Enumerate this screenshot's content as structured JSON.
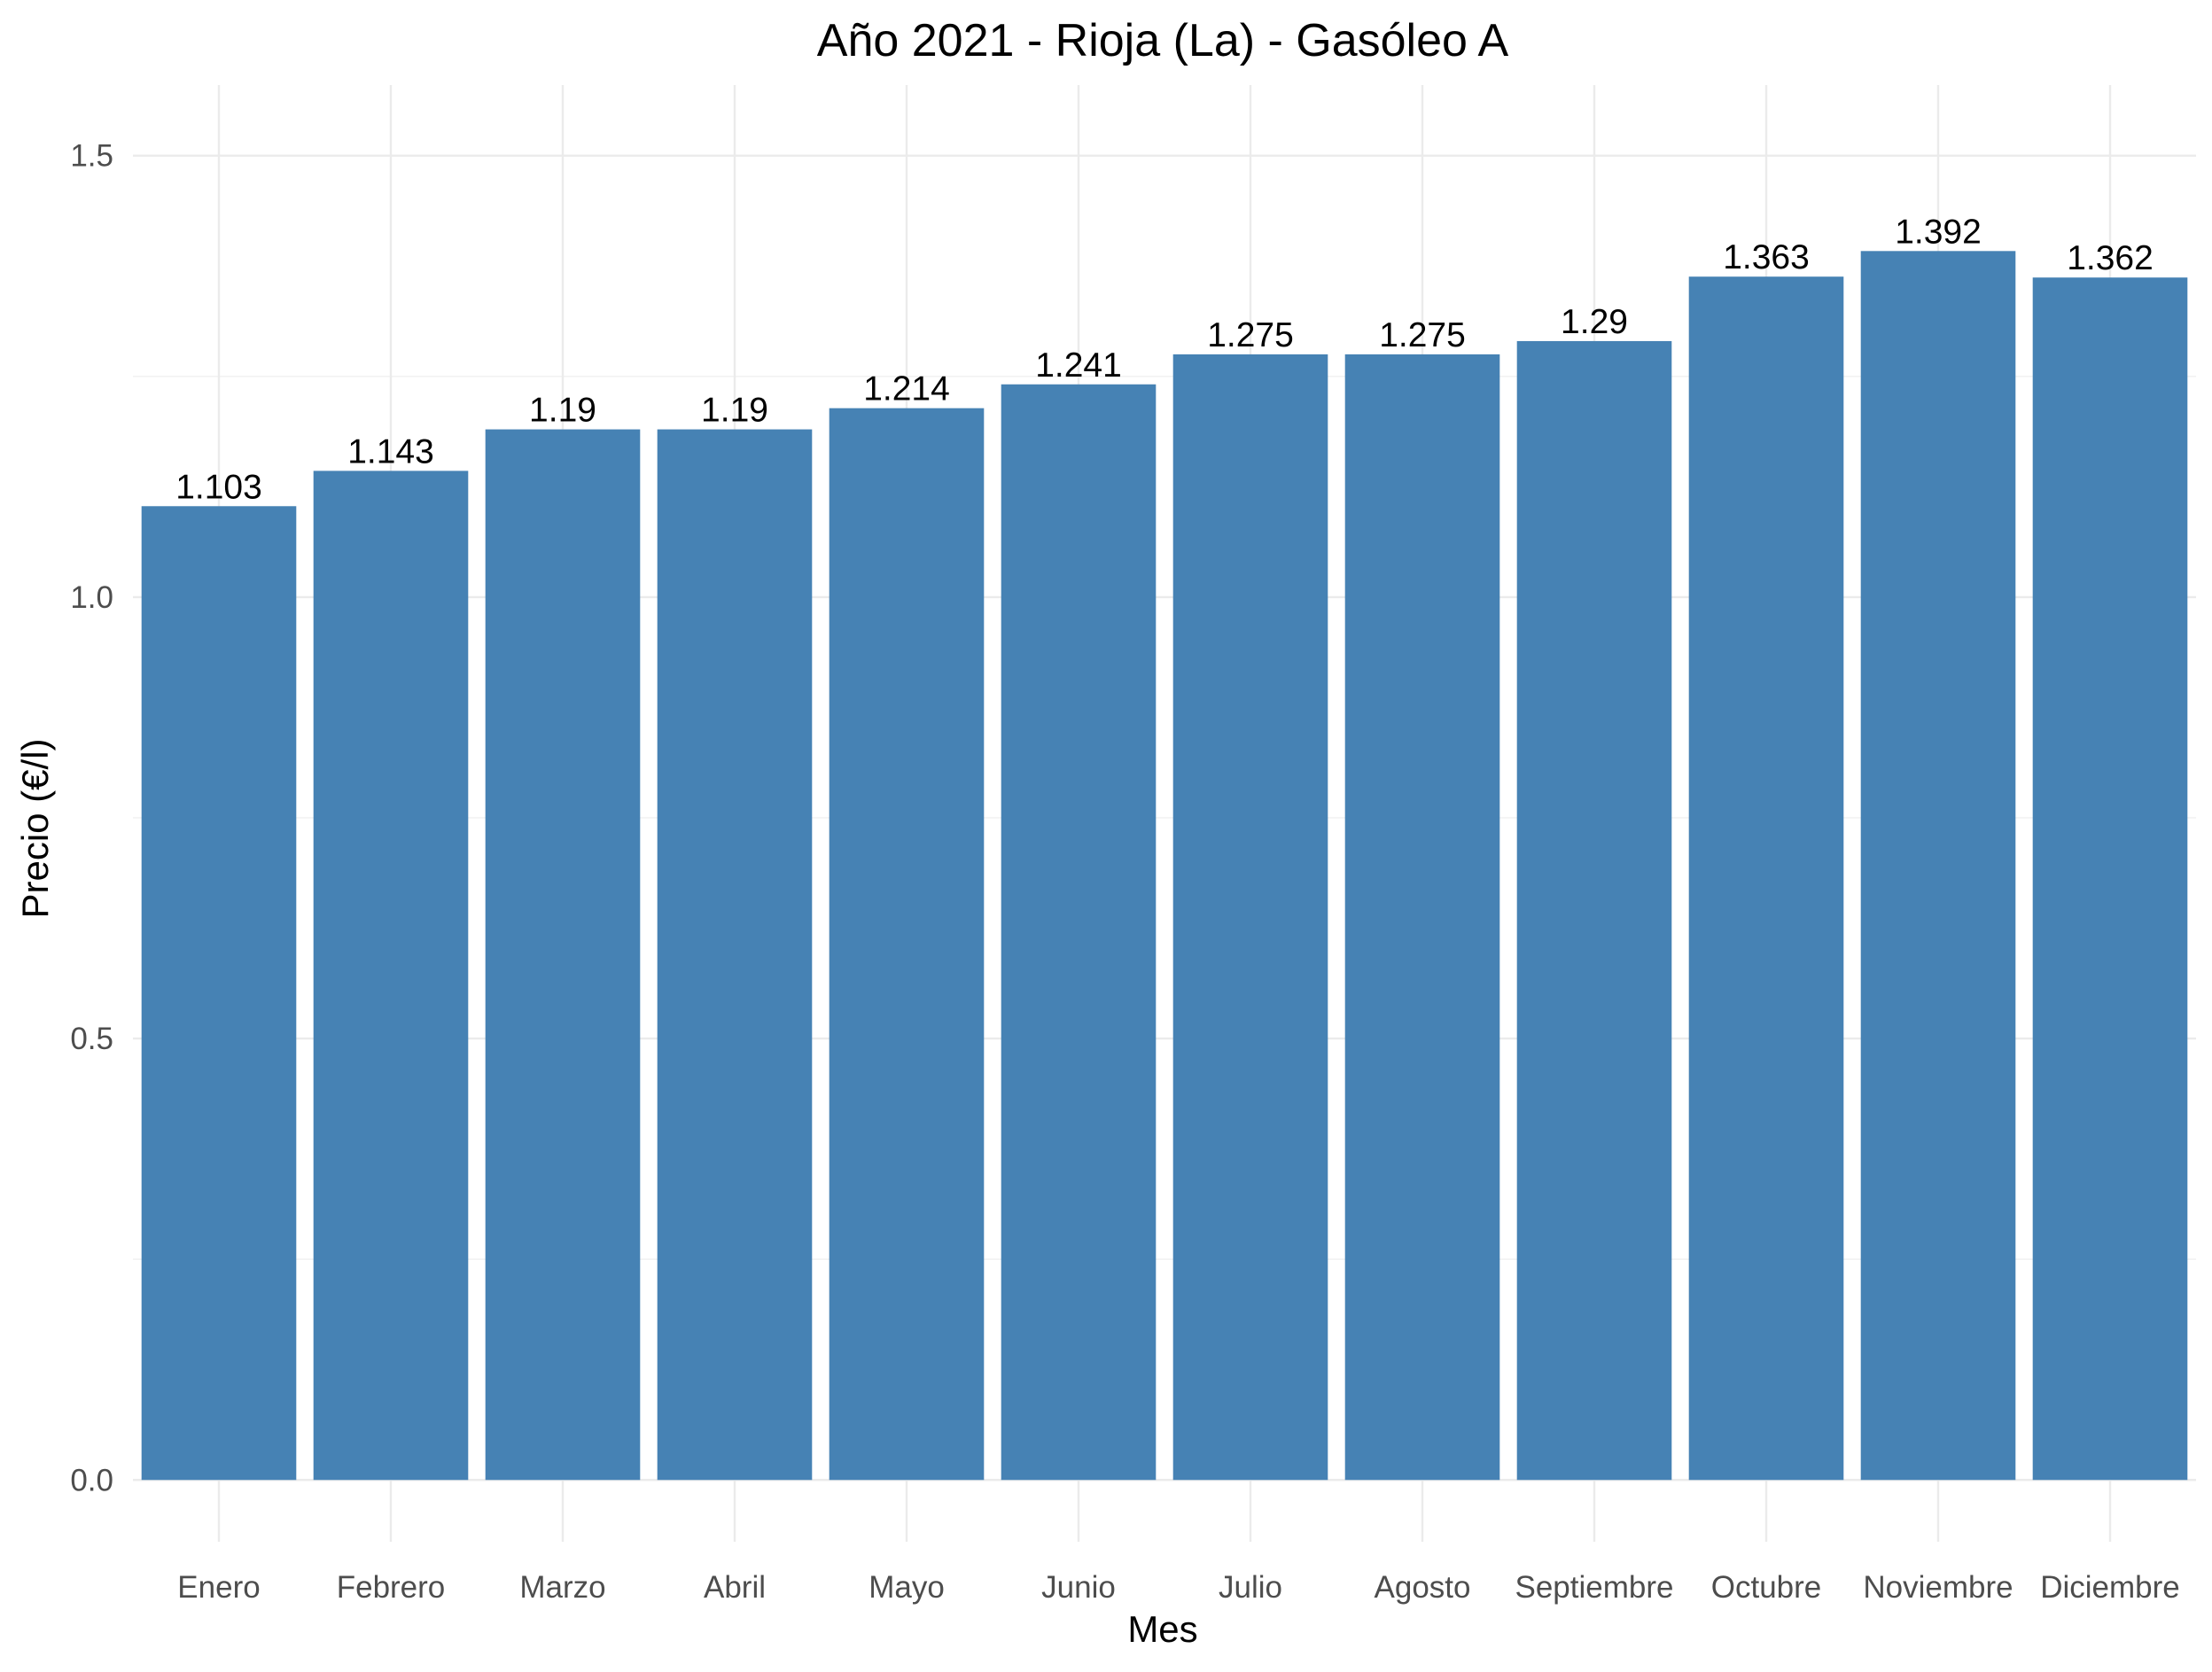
{
  "chart_data": {
    "type": "bar",
    "title": "Año 2021 - Rioja (La) - Gasóleo A",
    "xlabel": "Mes",
    "ylabel": "Precio (€/l)",
    "categories": [
      "Enero",
      "Febrero",
      "Marzo",
      "Abril",
      "Mayo",
      "Junio",
      "Julio",
      "Agosto",
      "Septiembre",
      "Octubre",
      "Noviembre",
      "Diciembre"
    ],
    "values": [
      1.103,
      1.143,
      1.19,
      1.19,
      1.214,
      1.241,
      1.275,
      1.275,
      1.29,
      1.363,
      1.392,
      1.362
    ],
    "data_labels": [
      "1.103",
      "1.143",
      "1.19",
      "1.19",
      "1.214",
      "1.241",
      "1.275",
      "1.275",
      "1.29",
      "1.363",
      "1.392",
      "1.362"
    ],
    "y_ticks": [
      0,
      0.5,
      1,
      1.5
    ],
    "y_tick_labels": [
      "0.0",
      "0.5",
      "1.0",
      "1.5"
    ],
    "ylim": [
      -0.07,
      1.58
    ],
    "grid": true,
    "legend": "none",
    "bar_color": "#4682b4"
  }
}
